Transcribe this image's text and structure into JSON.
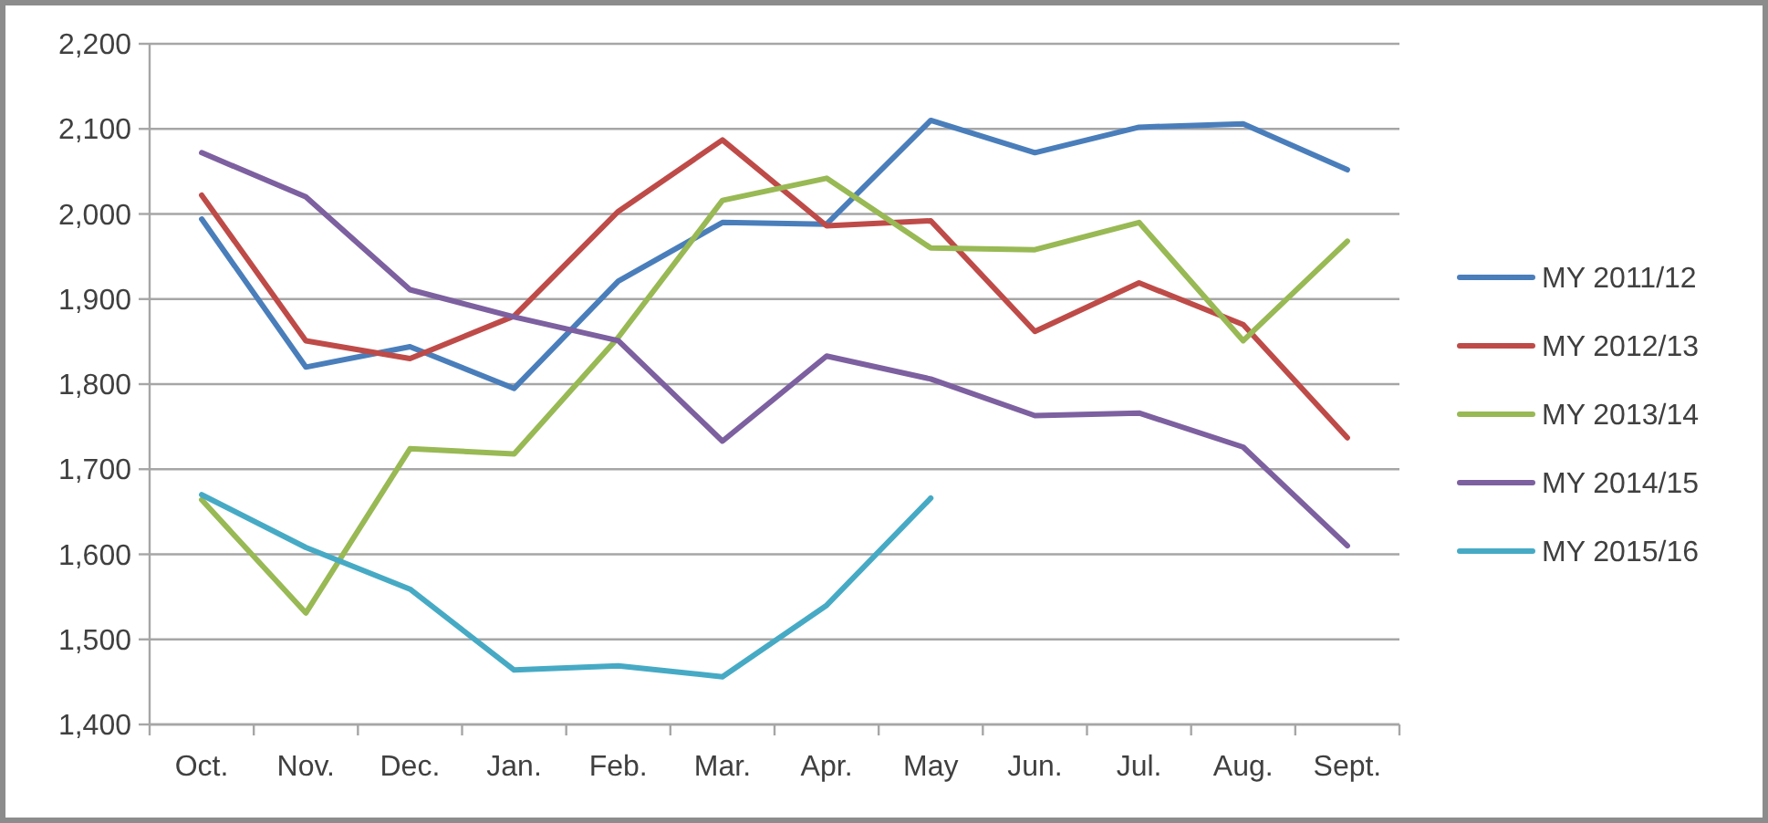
{
  "chart_data": {
    "type": "line",
    "categories": [
      "Oct.",
      "Nov.",
      "Dec.",
      "Jan.",
      "Feb.",
      "Mar.",
      "Apr.",
      "May",
      "Jun.",
      "Jul.",
      "Aug.",
      "Sept."
    ],
    "series": [
      {
        "name": "MY 2011/12",
        "color": "#4a7ebb",
        "values": [
          1994,
          1820,
          1844,
          1795,
          1921,
          1990,
          1988,
          2110,
          2072,
          2102,
          2106,
          2052
        ]
      },
      {
        "name": "MY 2012/13",
        "color": "#be4b48",
        "values": [
          2022,
          1851,
          1830,
          1880,
          2003,
          2087,
          1986,
          1992,
          1862,
          1919,
          1870,
          1737
        ]
      },
      {
        "name": "MY 2013/14",
        "color": "#98b954",
        "values": [
          1664,
          1531,
          1724,
          1718,
          1855,
          2016,
          2042,
          1960,
          1958,
          1990,
          1851,
          1968
        ]
      },
      {
        "name": "MY 2014/15",
        "color": "#7d60a0",
        "values": [
          2072,
          2020,
          1911,
          1879,
          1851,
          1733,
          1833,
          1806,
          1763,
          1766,
          1726,
          1610
        ]
      },
      {
        "name": "MY 2015/16",
        "color": "#46aac5",
        "values": [
          1670,
          1608,
          1559,
          1464,
          1469,
          1456,
          1540,
          1666,
          null,
          null,
          null,
          null
        ]
      }
    ],
    "ylim": [
      1400,
      2200
    ],
    "yticks": [
      {
        "value": 1400,
        "label": "1,400"
      },
      {
        "value": 1500,
        "label": "1,500"
      },
      {
        "value": 1600,
        "label": "1,600"
      },
      {
        "value": 1700,
        "label": "1,700"
      },
      {
        "value": 1800,
        "label": "1,800"
      },
      {
        "value": 1900,
        "label": "1,900"
      },
      {
        "value": 2000,
        "label": "2,000"
      },
      {
        "value": 2100,
        "label": "2,100"
      },
      {
        "value": 2200,
        "label": "2,200"
      }
    ],
    "grid": "y",
    "legend": "right",
    "line_style": "solid"
  }
}
